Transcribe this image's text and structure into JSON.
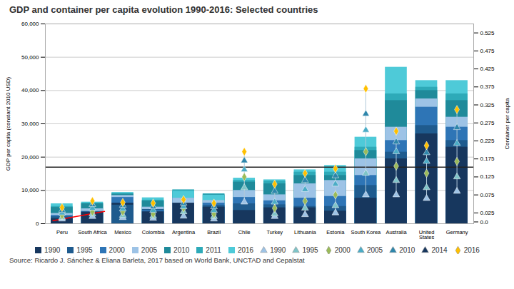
{
  "chart_data": {
    "type": "bar",
    "title": "GDP and container per capita evolution 1990-2016: Selected countries",
    "caption": "Source: Ricardo J. Sánchez & Eliana Barleta, 2017 based on World Bank, UNCTAD and Cepalstat",
    "ylabel": "GDP per capita (constant 2010 USD)",
    "y2label": "Container per capita",
    "categories": [
      "Peru",
      "South Africa",
      "Mexico",
      "Colombia",
      "Argentina",
      "Brazil",
      "Chile",
      "Turkey",
      "Lithuania",
      "Estonia",
      "South Korea",
      "Australia",
      "United\nStates",
      "Germany"
    ],
    "series": [
      {
        "name": "1990",
        "type": "bar",
        "color": "#17375e",
        "values": [
          1500,
          3500,
          6200,
          3600,
          6200,
          5000,
          4000,
          4800,
          4800,
          3800,
          7700,
          19500,
          27000,
          23000
        ]
      },
      {
        "name": "1995",
        "type": "bar",
        "color": "#1f5b8e",
        "values": [
          2100,
          3700,
          5600,
          4300,
          7700,
          5500,
          6000,
          5700,
          5200,
          5200,
          11500,
          21500,
          29500,
          25000
        ]
      },
      {
        "name": "2000",
        "type": "bar",
        "color": "#2e75b6",
        "values": [
          2500,
          3600,
          7900,
          4000,
          7700,
          6200,
          7900,
          6900,
          7700,
          8200,
          14500,
          25000,
          35000,
          29000
        ]
      },
      {
        "name": "2005",
        "type": "bar",
        "color": "#9dc3e6",
        "values": [
          3100,
          4500,
          8500,
          5000,
          7700,
          7000,
          10000,
          8700,
          12000,
          13000,
          19500,
          29000,
          37500,
          32000
        ]
      },
      {
        "name": "2010",
        "type": "bar",
        "color": "#1f8a9a",
        "values": [
          4900,
          6000,
          8900,
          6800,
          9800,
          8700,
          12500,
          12000,
          14500,
          14500,
          22000,
          37000,
          40000,
          37000
        ]
      },
      {
        "name": "2011",
        "type": "bar",
        "color": "#2eaab8",
        "values": [
          5200,
          6200,
          9100,
          7100,
          10200,
          9000,
          13000,
          12800,
          15500,
          15500,
          23000,
          39000,
          41000,
          39000
        ]
      },
      {
        "name": "2016",
        "type": "bar",
        "color": "#4ecad8",
        "values": [
          6000,
          6500,
          9400,
          7800,
          9800,
          8600,
          13700,
          13200,
          16200,
          17500,
          26000,
          47000,
          43000,
          43000
        ]
      },
      {
        "name": "1990",
        "type": "scatter",
        "axis": "y2",
        "marker": "triangle",
        "color": "#9dc3e6",
        "values": [
          0.008,
          0.015,
          0.012,
          0.01,
          0.016,
          0.008,
          0.055,
          0.015,
          0.02,
          0.025,
          0.075,
          0.075,
          0.065,
          0.085
        ]
      },
      {
        "name": "1995",
        "type": "scatter",
        "axis": "y2",
        "marker": "triangle",
        "color": "#7fc4c8",
        "values": [
          0.012,
          0.022,
          0.018,
          0.016,
          0.028,
          0.015,
          0.095,
          0.022,
          0.038,
          0.045,
          0.135,
          0.115,
          0.095,
          0.125
        ]
      },
      {
        "name": "2000",
        "type": "scatter",
        "axis": "y2",
        "marker": "diamond",
        "color": "#9bbb59",
        "values": [
          0.018,
          0.028,
          0.028,
          0.022,
          0.038,
          0.022,
          0.125,
          0.038,
          0.058,
          0.075,
          0.195,
          0.155,
          0.135,
          0.168
        ]
      },
      {
        "name": "2005",
        "type": "scatter",
        "axis": "y2",
        "marker": "triangle",
        "color": "#4bacc6",
        "values": [
          0.025,
          0.038,
          0.036,
          0.032,
          0.042,
          0.032,
          0.145,
          0.055,
          0.09,
          0.105,
          0.255,
          0.195,
          0.168,
          0.218
        ]
      },
      {
        "name": "2010",
        "type": "scatter",
        "axis": "y2",
        "marker": "triangle",
        "color": "#2e86ab",
        "values": [
          0.032,
          0.048,
          0.046,
          0.042,
          0.052,
          0.042,
          0.17,
          0.085,
          0.115,
          0.128,
          0.3,
          0.222,
          0.192,
          0.262
        ]
      },
      {
        "name": "2014",
        "type": "scatter",
        "axis": "y2",
        "marker": "triangle",
        "color": "#17375e",
        "values": [
          null,
          null,
          null,
          null,
          null,
          null,
          null,
          null,
          null,
          null,
          null,
          null,
          null,
          null
        ]
      },
      {
        "name": "2016",
        "type": "scatter",
        "axis": "y2",
        "marker": "diamond",
        "color": "#ffc000",
        "values": [
          0.04,
          0.058,
          0.054,
          0.052,
          0.062,
          0.052,
          0.195,
          0.105,
          0.135,
          0.148,
          0.37,
          0.252,
          0.212,
          0.312
        ]
      }
    ],
    "trend_line": {
      "x": [
        -0.3,
        1.4
      ],
      "values": [
        900,
        3675
      ],
      "color": "red"
    },
    "hline": {
      "value": 17000,
      "color": "#222222"
    },
    "ylim": [
      0,
      60000
    ],
    "yticks": [
      0,
      {
        "value": 10000,
        "label": "10,000"
      },
      {
        "value": 20000,
        "label": "20,000"
      },
      {
        "value": 30000,
        "label": "30,000"
      },
      {
        "value": 40000,
        "label": "40,000"
      },
      {
        "value": 50000,
        "label": "50,000"
      },
      {
        "value": 60000,
        "label": "60,000"
      }
    ],
    "y2lim": [
      -0.005,
      0.55
    ],
    "y2ticks": [
      {
        "value": 0,
        "label": "0.0"
      },
      0.025,
      0.075,
      0.125,
      0.175,
      0.225,
      0.275,
      0.325,
      0.375,
      0.425,
      0.475,
      0.525
    ],
    "grid": true,
    "legend": "bottom"
  }
}
